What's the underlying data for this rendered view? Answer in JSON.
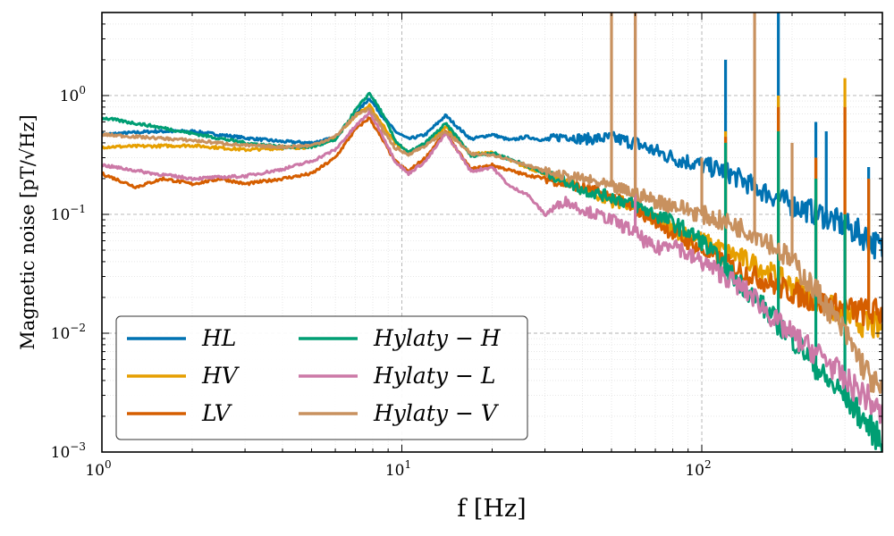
{
  "chart_data": {
    "type": "line",
    "xscale": "log",
    "yscale": "log",
    "xlim": [
      1,
      400
    ],
    "ylim": [
      0.001,
      5
    ],
    "xlabel": "f [Hz]",
    "ylabel": "Magnetic noise [pT/√Hz]",
    "grid": true,
    "legend_position": "lower-left",
    "x_ticks": [
      {
        "value": 1,
        "label": "10^0"
      },
      {
        "value": 10,
        "label": "10^1"
      },
      {
        "value": 100,
        "label": "10^2"
      }
    ],
    "y_ticks": [
      {
        "value": 0.001,
        "label": "10^-3"
      },
      {
        "value": 0.01,
        "label": "10^-2"
      },
      {
        "value": 0.1,
        "label": "10^-1"
      },
      {
        "value": 1,
        "label": "10^0"
      }
    ],
    "series": [
      {
        "name": "HL",
        "color": "#0072b2",
        "width": 3,
        "points": [
          [
            1,
            0.47
          ],
          [
            1.5,
            0.5
          ],
          [
            2,
            0.5
          ],
          [
            3,
            0.44
          ],
          [
            4,
            0.41
          ],
          [
            5,
            0.4
          ],
          [
            6,
            0.44
          ],
          [
            7,
            0.7
          ],
          [
            7.8,
            0.95
          ],
          [
            8.5,
            0.7
          ],
          [
            9.5,
            0.5
          ],
          [
            10.5,
            0.43
          ],
          [
            12,
            0.47
          ],
          [
            14,
            0.68
          ],
          [
            15.5,
            0.53
          ],
          [
            17,
            0.43
          ],
          [
            20,
            0.47
          ],
          [
            23,
            0.42
          ],
          [
            26,
            0.45
          ],
          [
            30,
            0.42
          ],
          [
            35,
            0.46
          ],
          [
            40,
            0.43
          ],
          [
            50,
            0.44
          ],
          [
            60,
            0.4
          ],
          [
            70,
            0.34
          ],
          [
            80,
            0.3
          ],
          [
            100,
            0.26
          ],
          [
            120,
            0.23
          ],
          [
            150,
            0.17
          ],
          [
            200,
            0.12
          ],
          [
            250,
            0.1
          ],
          [
            300,
            0.08
          ],
          [
            350,
            0.065
          ],
          [
            400,
            0.05
          ]
        ],
        "spikes": [
          [
            120,
            2
          ],
          [
            180,
            5
          ],
          [
            240,
            0.6
          ],
          [
            260,
            0.5
          ],
          [
            360,
            0.25
          ]
        ]
      },
      {
        "name": "HV",
        "color": "#e69f00",
        "width": 3,
        "points": [
          [
            1,
            0.37
          ],
          [
            2,
            0.38
          ],
          [
            3,
            0.35
          ],
          [
            5,
            0.37
          ],
          [
            6,
            0.44
          ],
          [
            7,
            0.68
          ],
          [
            7.8,
            0.82
          ],
          [
            8.5,
            0.6
          ],
          [
            9.5,
            0.4
          ],
          [
            10.5,
            0.33
          ],
          [
            12,
            0.38
          ],
          [
            14,
            0.55
          ],
          [
            15.5,
            0.42
          ],
          [
            17,
            0.32
          ],
          [
            20,
            0.33
          ],
          [
            25,
            0.26
          ],
          [
            30,
            0.22
          ],
          [
            35,
            0.19
          ],
          [
            40,
            0.16
          ],
          [
            50,
            0.13
          ],
          [
            60,
            0.12
          ],
          [
            70,
            0.09
          ],
          [
            80,
            0.075
          ],
          [
            100,
            0.06
          ],
          [
            130,
            0.045
          ],
          [
            160,
            0.035
          ],
          [
            200,
            0.025
          ],
          [
            250,
            0.018
          ],
          [
            300,
            0.014
          ],
          [
            350,
            0.012
          ],
          [
            400,
            0.011
          ]
        ],
        "spikes": [
          [
            120,
            0.5
          ],
          [
            180,
            1
          ],
          [
            240,
            0.3
          ],
          [
            300,
            1.4
          ],
          [
            360,
            0.1
          ]
        ]
      },
      {
        "name": "LV",
        "color": "#d55e00",
        "width": 3,
        "points": [
          [
            1,
            0.22
          ],
          [
            1.3,
            0.17
          ],
          [
            1.6,
            0.2
          ],
          [
            2,
            0.18
          ],
          [
            2.5,
            0.2
          ],
          [
            3,
            0.18
          ],
          [
            4,
            0.2
          ],
          [
            5,
            0.22
          ],
          [
            6,
            0.3
          ],
          [
            7,
            0.52
          ],
          [
            7.8,
            0.65
          ],
          [
            8.5,
            0.45
          ],
          [
            9.5,
            0.28
          ],
          [
            10.5,
            0.23
          ],
          [
            12,
            0.3
          ],
          [
            14,
            0.5
          ],
          [
            15.5,
            0.33
          ],
          [
            17,
            0.24
          ],
          [
            20,
            0.26
          ],
          [
            25,
            0.22
          ],
          [
            30,
            0.2
          ],
          [
            35,
            0.18
          ],
          [
            40,
            0.17
          ],
          [
            50,
            0.14
          ],
          [
            60,
            0.11
          ],
          [
            70,
            0.09
          ],
          [
            80,
            0.07
          ],
          [
            100,
            0.05
          ],
          [
            130,
            0.035
          ],
          [
            160,
            0.028
          ],
          [
            200,
            0.022
          ],
          [
            250,
            0.018
          ],
          [
            300,
            0.016
          ],
          [
            350,
            0.015
          ],
          [
            400,
            0.015
          ]
        ],
        "spikes": [
          [
            120,
            0.45
          ],
          [
            180,
            0.8
          ],
          [
            240,
            0.3
          ],
          [
            300,
            0.8
          ],
          [
            360,
            0.2
          ]
        ]
      },
      {
        "name": "Hylaty − H",
        "color": "#009e73",
        "width": 3,
        "points": [
          [
            1,
            0.65
          ],
          [
            1.5,
            0.55
          ],
          [
            2,
            0.48
          ],
          [
            3,
            0.4
          ],
          [
            4,
            0.37
          ],
          [
            5,
            0.37
          ],
          [
            6,
            0.42
          ],
          [
            7,
            0.75
          ],
          [
            7.8,
            1.05
          ],
          [
            8.5,
            0.75
          ],
          [
            9.5,
            0.42
          ],
          [
            10.5,
            0.33
          ],
          [
            12,
            0.4
          ],
          [
            14,
            0.58
          ],
          [
            15.5,
            0.43
          ],
          [
            17,
            0.31
          ],
          [
            20,
            0.33
          ],
          [
            25,
            0.27
          ],
          [
            30,
            0.22
          ],
          [
            35,
            0.19
          ],
          [
            40,
            0.16
          ],
          [
            50,
            0.14
          ],
          [
            60,
            0.12
          ],
          [
            70,
            0.1
          ],
          [
            80,
            0.085
          ],
          [
            100,
            0.06
          ],
          [
            120,
            0.035
          ],
          [
            150,
            0.02
          ],
          [
            180,
            0.012
          ],
          [
            220,
            0.007
          ],
          [
            260,
            0.004
          ],
          [
            300,
            0.003
          ],
          [
            350,
            0.0018
          ],
          [
            400,
            0.0012
          ]
        ],
        "spikes": [
          [
            120,
            0.4
          ],
          [
            180,
            0.5
          ],
          [
            240,
            0.2
          ],
          [
            300,
            0.1
          ]
        ]
      },
      {
        "name": "Hylaty − L",
        "color": "#cc79a7",
        "width": 3,
        "points": [
          [
            1,
            0.26
          ],
          [
            1.5,
            0.22
          ],
          [
            2,
            0.2
          ],
          [
            3,
            0.21
          ],
          [
            4,
            0.24
          ],
          [
            5,
            0.28
          ],
          [
            6,
            0.35
          ],
          [
            7,
            0.55
          ],
          [
            7.8,
            0.72
          ],
          [
            8.5,
            0.5
          ],
          [
            9.5,
            0.28
          ],
          [
            10.5,
            0.22
          ],
          [
            12,
            0.28
          ],
          [
            14,
            0.48
          ],
          [
            15.5,
            0.33
          ],
          [
            17,
            0.23
          ],
          [
            20,
            0.25
          ],
          [
            23,
            0.17
          ],
          [
            26,
            0.15
          ],
          [
            30,
            0.1
          ],
          [
            35,
            0.13
          ],
          [
            40,
            0.11
          ],
          [
            50,
            0.09
          ],
          [
            60,
            0.07
          ],
          [
            70,
            0.05
          ],
          [
            80,
            0.06
          ],
          [
            90,
            0.045
          ],
          [
            100,
            0.04
          ],
          [
            120,
            0.03
          ],
          [
            150,
            0.02
          ],
          [
            180,
            0.012
          ],
          [
            220,
            0.008
          ],
          [
            260,
            0.006
          ],
          [
            300,
            0.004
          ],
          [
            350,
            0.003
          ],
          [
            400,
            0.002
          ]
        ],
        "spikes": [
          [
            50,
            0.1
          ],
          [
            60,
            5
          ]
        ]
      },
      {
        "name": "Hylaty − V",
        "color": "#c8915f",
        "width": 3,
        "points": [
          [
            1,
            0.47
          ],
          [
            1.5,
            0.44
          ],
          [
            2,
            0.42
          ],
          [
            3,
            0.38
          ],
          [
            4,
            0.37
          ],
          [
            5,
            0.38
          ],
          [
            6,
            0.45
          ],
          [
            7,
            0.68
          ],
          [
            7.8,
            0.78
          ],
          [
            8.5,
            0.55
          ],
          [
            9.5,
            0.36
          ],
          [
            10.5,
            0.32
          ],
          [
            12,
            0.38
          ],
          [
            14,
            0.5
          ],
          [
            15.5,
            0.4
          ],
          [
            17,
            0.32
          ],
          [
            20,
            0.32
          ],
          [
            25,
            0.27
          ],
          [
            30,
            0.23
          ],
          [
            35,
            0.21
          ],
          [
            40,
            0.2
          ],
          [
            50,
            0.17
          ],
          [
            60,
            0.15
          ],
          [
            70,
            0.13
          ],
          [
            80,
            0.12
          ],
          [
            100,
            0.1
          ],
          [
            130,
            0.08
          ],
          [
            160,
            0.065
          ],
          [
            200,
            0.04
          ],
          [
            250,
            0.02
          ],
          [
            300,
            0.01
          ],
          [
            350,
            0.005
          ],
          [
            400,
            0.003
          ]
        ],
        "spikes": [
          [
            50,
            5
          ],
          [
            60,
            5
          ],
          [
            100,
            0.3
          ],
          [
            150,
            5
          ],
          [
            200,
            0.4
          ]
        ]
      }
    ]
  }
}
